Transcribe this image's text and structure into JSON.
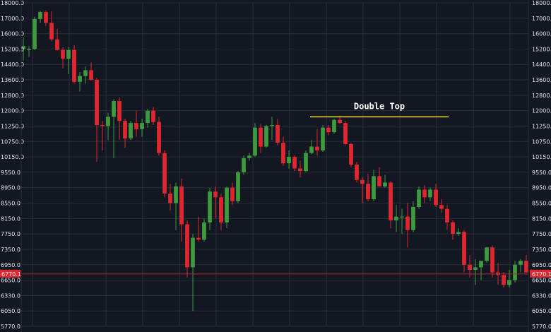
{
  "chart_data": {
    "type": "candlestick",
    "title": "",
    "xlabel": "",
    "ylabel": "",
    "ylim": [
      5770,
      18000
    ],
    "y_ticks": [
      5770,
      6050,
      6330,
      6650,
      6950,
      7350,
      7750,
      8150,
      8550,
      8950,
      9550,
      10150,
      10750,
      11250,
      12000,
      12800,
      13600,
      14400,
      15200,
      16000,
      17000,
      18000
    ],
    "y_tick_labels": [
      "5770.0",
      "6050.0",
      "6330.0",
      "6650.0",
      "6950.0",
      "7350.0",
      "7750.0",
      "8150.0",
      "8550.0",
      "8950.0",
      "9550.0",
      "10150.0",
      "10750.0",
      "11250.0",
      "12000.0",
      "12800.0",
      "13600.0",
      "14400.0",
      "15200.0",
      "16000.0",
      "17000.0",
      "18000.0"
    ],
    "grid": true,
    "current_price": 6770.1,
    "current_price_label": "6770.1",
    "colors": {
      "up": "#3e9a3e",
      "down": "#e0262e",
      "background": "#131722",
      "grid": "#2a2e39",
      "annotation_line": "#e8d83a",
      "price_line": "#b3262e"
    },
    "annotation": {
      "text": "Double Top",
      "from_index": 51,
      "to_index": 75,
      "price": 11700
    },
    "candles": [
      {
        "o": 15200,
        "h": 15800,
        "l": 14600,
        "c": 15350
      },
      {
        "o": 15150,
        "h": 15350,
        "l": 14800,
        "c": 15200
      },
      {
        "o": 15200,
        "h": 17100,
        "l": 15150,
        "c": 16950
      },
      {
        "o": 16950,
        "h": 17500,
        "l": 16700,
        "c": 17400
      },
      {
        "o": 17400,
        "h": 17500,
        "l": 16500,
        "c": 16700
      },
      {
        "o": 16700,
        "h": 17450,
        "l": 15600,
        "c": 15700
      },
      {
        "o": 15700,
        "h": 16300,
        "l": 15100,
        "c": 15150
      },
      {
        "o": 15150,
        "h": 15300,
        "l": 14200,
        "c": 14700
      },
      {
        "o": 14700,
        "h": 15300,
        "l": 13900,
        "c": 15150
      },
      {
        "o": 15150,
        "h": 15400,
        "l": 13400,
        "c": 13500
      },
      {
        "o": 13500,
        "h": 14000,
        "l": 13000,
        "c": 13800
      },
      {
        "o": 13800,
        "h": 14300,
        "l": 13400,
        "c": 14100
      },
      {
        "o": 14100,
        "h": 14500,
        "l": 13550,
        "c": 13600
      },
      {
        "o": 13600,
        "h": 13700,
        "l": 9950,
        "c": 11300
      },
      {
        "o": 11300,
        "h": 11500,
        "l": 10400,
        "c": 11250
      },
      {
        "o": 11250,
        "h": 11900,
        "l": 10800,
        "c": 11700
      },
      {
        "o": 11700,
        "h": 12600,
        "l": 10100,
        "c": 12500
      },
      {
        "o": 12500,
        "h": 12700,
        "l": 10800,
        "c": 11500
      },
      {
        "o": 11500,
        "h": 11600,
        "l": 10500,
        "c": 10850
      },
      {
        "o": 10850,
        "h": 11500,
        "l": 10800,
        "c": 11400
      },
      {
        "o": 11400,
        "h": 12000,
        "l": 10900,
        "c": 11150
      },
      {
        "o": 11150,
        "h": 11600,
        "l": 10900,
        "c": 11400
      },
      {
        "o": 11400,
        "h": 12100,
        "l": 11200,
        "c": 12000
      },
      {
        "o": 12000,
        "h": 12200,
        "l": 11300,
        "c": 11450
      },
      {
        "o": 11450,
        "h": 11700,
        "l": 10200,
        "c": 10300
      },
      {
        "o": 10300,
        "h": 10400,
        "l": 8700,
        "c": 8800
      },
      {
        "o": 8800,
        "h": 9100,
        "l": 8350,
        "c": 8550
      },
      {
        "o": 8550,
        "h": 9150,
        "l": 7850,
        "c": 9000
      },
      {
        "o": 9000,
        "h": 9300,
        "l": 7550,
        "c": 8000
      },
      {
        "o": 8000,
        "h": 8100,
        "l": 6700,
        "c": 6900
      },
      {
        "o": 6900,
        "h": 7750,
        "l": 6050,
        "c": 7650
      },
      {
        "o": 7650,
        "h": 8200,
        "l": 7550,
        "c": 7600
      },
      {
        "o": 7600,
        "h": 8150,
        "l": 7550,
        "c": 8050
      },
      {
        "o": 8050,
        "h": 8950,
        "l": 7850,
        "c": 8850
      },
      {
        "o": 8850,
        "h": 9000,
        "l": 8150,
        "c": 8700
      },
      {
        "o": 8700,
        "h": 8800,
        "l": 7850,
        "c": 8050
      },
      {
        "o": 8050,
        "h": 9000,
        "l": 7900,
        "c": 8950
      },
      {
        "o": 8950,
        "h": 9150,
        "l": 8500,
        "c": 8600
      },
      {
        "o": 8600,
        "h": 9600,
        "l": 8550,
        "c": 9550
      },
      {
        "o": 9550,
        "h": 10200,
        "l": 9450,
        "c": 10100
      },
      {
        "o": 10100,
        "h": 10300,
        "l": 10000,
        "c": 10200
      },
      {
        "o": 10200,
        "h": 11400,
        "l": 10150,
        "c": 11200
      },
      {
        "o": 11200,
        "h": 11350,
        "l": 10300,
        "c": 10550
      },
      {
        "o": 10550,
        "h": 11300,
        "l": 10500,
        "c": 11250
      },
      {
        "o": 11250,
        "h": 11700,
        "l": 10800,
        "c": 11300
      },
      {
        "o": 11300,
        "h": 11600,
        "l": 10600,
        "c": 10700
      },
      {
        "o": 10700,
        "h": 10900,
        "l": 9800,
        "c": 9900
      },
      {
        "o": 9900,
        "h": 10400,
        "l": 9700,
        "c": 10150
      },
      {
        "o": 10150,
        "h": 10200,
        "l": 9600,
        "c": 9700
      },
      {
        "o": 9700,
        "h": 10000,
        "l": 9350,
        "c": 9600
      },
      {
        "o": 9600,
        "h": 10400,
        "l": 9550,
        "c": 10300
      },
      {
        "o": 10300,
        "h": 10800,
        "l": 10250,
        "c": 10550
      },
      {
        "o": 10550,
        "h": 11150,
        "l": 10200,
        "c": 10400
      },
      {
        "o": 10400,
        "h": 11300,
        "l": 10350,
        "c": 11200
      },
      {
        "o": 11200,
        "h": 11300,
        "l": 10950,
        "c": 11050
      },
      {
        "o": 11050,
        "h": 11600,
        "l": 11000,
        "c": 11550
      },
      {
        "o": 11550,
        "h": 11750,
        "l": 11350,
        "c": 11400
      },
      {
        "o": 11400,
        "h": 11500,
        "l": 10600,
        "c": 10650
      },
      {
        "o": 10650,
        "h": 10700,
        "l": 9750,
        "c": 9850
      },
      {
        "o": 9850,
        "h": 9950,
        "l": 9150,
        "c": 9250
      },
      {
        "o": 9250,
        "h": 9350,
        "l": 8550,
        "c": 9100
      },
      {
        "o": 9100,
        "h": 9500,
        "l": 8600,
        "c": 8650
      },
      {
        "o": 8650,
        "h": 9650,
        "l": 8600,
        "c": 9400
      },
      {
        "o": 9400,
        "h": 9750,
        "l": 9000,
        "c": 9000
      },
      {
        "o": 9000,
        "h": 9450,
        "l": 8950,
        "c": 9150
      },
      {
        "o": 9150,
        "h": 9200,
        "l": 7900,
        "c": 8100
      },
      {
        "o": 8100,
        "h": 8500,
        "l": 7800,
        "c": 8200
      },
      {
        "o": 8200,
        "h": 8400,
        "l": 7750,
        "c": 8200
      },
      {
        "o": 8200,
        "h": 8550,
        "l": 7400,
        "c": 7850
      },
      {
        "o": 7850,
        "h": 8600,
        "l": 7800,
        "c": 8450
      },
      {
        "o": 8450,
        "h": 9000,
        "l": 8400,
        "c": 8900
      },
      {
        "o": 8900,
        "h": 9050,
        "l": 8550,
        "c": 8700
      },
      {
        "o": 8700,
        "h": 8950,
        "l": 8600,
        "c": 8900
      },
      {
        "o": 8900,
        "h": 9100,
        "l": 8450,
        "c": 8500
      },
      {
        "o": 8500,
        "h": 8650,
        "l": 8300,
        "c": 8400
      },
      {
        "o": 8400,
        "h": 8500,
        "l": 7850,
        "c": 8050
      },
      {
        "o": 8050,
        "h": 8100,
        "l": 7600,
        "c": 7750
      },
      {
        "o": 7750,
        "h": 7900,
        "l": 7700,
        "c": 7800
      },
      {
        "o": 7800,
        "h": 7850,
        "l": 6800,
        "c": 6950
      },
      {
        "o": 6950,
        "h": 7200,
        "l": 6700,
        "c": 6850
      },
      {
        "o": 6850,
        "h": 7100,
        "l": 6550,
        "c": 6900
      },
      {
        "o": 6900,
        "h": 7050,
        "l": 6650,
        "c": 7050
      },
      {
        "o": 7050,
        "h": 7400,
        "l": 7000,
        "c": 7400
      },
      {
        "o": 7400,
        "h": 7450,
        "l": 6700,
        "c": 6800
      },
      {
        "o": 6800,
        "h": 7000,
        "l": 6550,
        "c": 6750
      },
      {
        "o": 6750,
        "h": 6800,
        "l": 6500,
        "c": 6550
      },
      {
        "o": 6550,
        "h": 6850,
        "l": 6500,
        "c": 6650
      },
      {
        "o": 6650,
        "h": 7050,
        "l": 6600,
        "c": 6950
      },
      {
        "o": 6950,
        "h": 7100,
        "l": 6800,
        "c": 7050
      },
      {
        "o": 7050,
        "h": 7200,
        "l": 6850,
        "c": 6800
      }
    ]
  }
}
